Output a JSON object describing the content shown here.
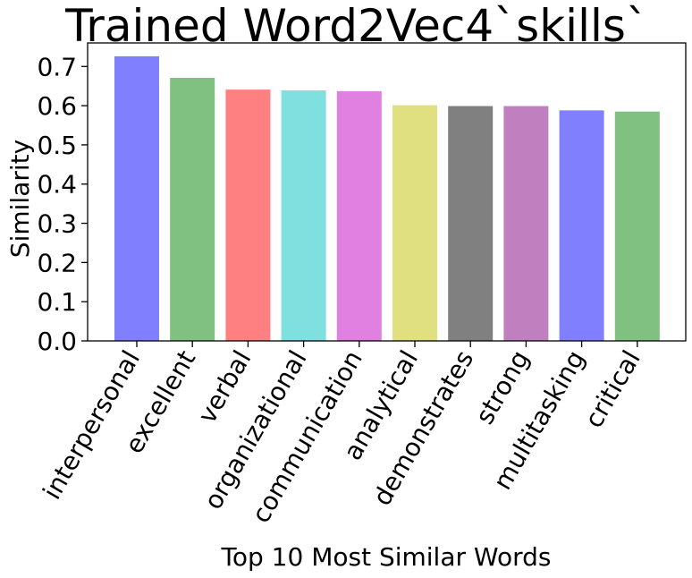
{
  "chart_data": {
    "type": "bar",
    "title": "Trained Word2Vec4`skills`",
    "xlabel": "Top 10 Most Similar Words",
    "ylabel": "Similarity",
    "ylim": [
      0,
      0.76
    ],
    "yticks": [
      "0.0",
      "0.1",
      "0.2",
      "0.3",
      "0.4",
      "0.5",
      "0.6",
      "0.7"
    ],
    "categories": [
      "interpersonal",
      "excellent",
      "verbal",
      "organizational",
      "communication",
      "analytical",
      "demonstrates",
      "strong",
      "multitasking",
      "critical"
    ],
    "values": [
      0.726,
      0.671,
      0.641,
      0.639,
      0.637,
      0.601,
      0.599,
      0.599,
      0.588,
      0.585
    ],
    "colors": [
      "#8080ff",
      "#80c080",
      "#ff8080",
      "#80e0e0",
      "#e080e0",
      "#e0e080",
      "#808080",
      "#c080c0",
      "#8080ff",
      "#80c080"
    ],
    "grid": false,
    "legend": "none"
  }
}
